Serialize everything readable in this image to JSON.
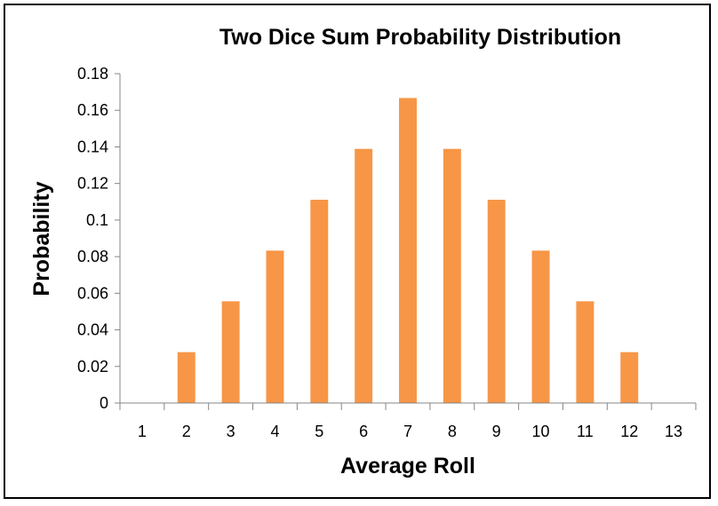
{
  "chart_data": {
    "type": "bar",
    "title": "Two Dice Sum Probability Distribution",
    "xlabel": "Average Roll",
    "ylabel": "Probability",
    "categories": [
      "1",
      "2",
      "3",
      "4",
      "5",
      "6",
      "7",
      "8",
      "9",
      "10",
      "11",
      "12",
      "13"
    ],
    "values": [
      0,
      0.0278,
      0.0556,
      0.0833,
      0.1111,
      0.1389,
      0.1667,
      0.1389,
      0.1111,
      0.0833,
      0.0556,
      0.0278,
      0
    ],
    "ylim": [
      0,
      0.18
    ],
    "yticks": [
      "0",
      "0.02",
      "0.04",
      "0.06",
      "0.08",
      "0.1",
      "0.12",
      "0.14",
      "0.16",
      "0.18"
    ],
    "grid": false,
    "legend": "none",
    "bar_color": "#F79646",
    "axis_color": "#868686"
  }
}
